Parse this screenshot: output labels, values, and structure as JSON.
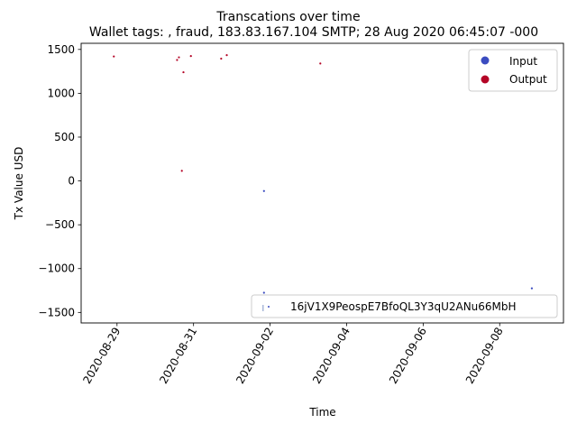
{
  "chart_data": {
    "type": "scatter",
    "title": "Transcations over time",
    "subtitle": "Wallet tags: , fraud, 183.83.167.104 SMTP; 28 Aug 2020 06:45:07 -000",
    "xlabel": "Time",
    "ylabel": "Tx Value USD",
    "x_ticks": [
      "2020-08-29",
      "2020-08-31",
      "2020-09-02",
      "2020-09-04",
      "2020-09-06",
      "2020-09-08"
    ],
    "y_ticks": [
      1500,
      1000,
      500,
      0,
      -500,
      -1000,
      -1500
    ],
    "y_tick_labels": [
      "1500",
      "1000",
      "500",
      "0",
      "−500",
      "−1000",
      "−1500"
    ],
    "xlim": [
      "2020-08-28T01:30",
      "2020-09-09T16:00"
    ],
    "ylim": [
      -1620,
      1570
    ],
    "grid": false,
    "legend_placement": "top-right",
    "legend": [
      {
        "label": "Input",
        "color": "#3b4cc0"
      },
      {
        "label": "Output",
        "color": "#b40426"
      }
    ],
    "address_legend": {
      "label": "16jV1X9PeospE7BfoQL3Y3qU2ANu66MbH",
      "placement": "bottom-right"
    },
    "series": [
      {
        "name": "Output",
        "color": "#b40426",
        "points": [
          {
            "x": "2020-08-28T22:00",
            "y": 1420
          },
          {
            "x": "2020-08-30T13:40",
            "y": 1380
          },
          {
            "x": "2020-08-30T14:50",
            "y": 1410
          },
          {
            "x": "2020-08-30T22:20",
            "y": 1425
          },
          {
            "x": "2020-08-30T17:40",
            "y": 1240
          },
          {
            "x": "2020-08-30T16:40",
            "y": 115
          },
          {
            "x": "2020-08-31T17:20",
            "y": 1395
          },
          {
            "x": "2020-08-31T20:50",
            "y": 1435
          },
          {
            "x": "2020-09-03T07:30",
            "y": 1340
          }
        ]
      },
      {
        "name": "Input",
        "color": "#3b4cc0",
        "points": [
          {
            "x": "2020-09-01T20:10",
            "y": -115
          },
          {
            "x": "2020-09-01T20:10",
            "y": -1275
          },
          {
            "x": "2020-09-08T20:10",
            "y": -1225
          }
        ]
      }
    ]
  }
}
